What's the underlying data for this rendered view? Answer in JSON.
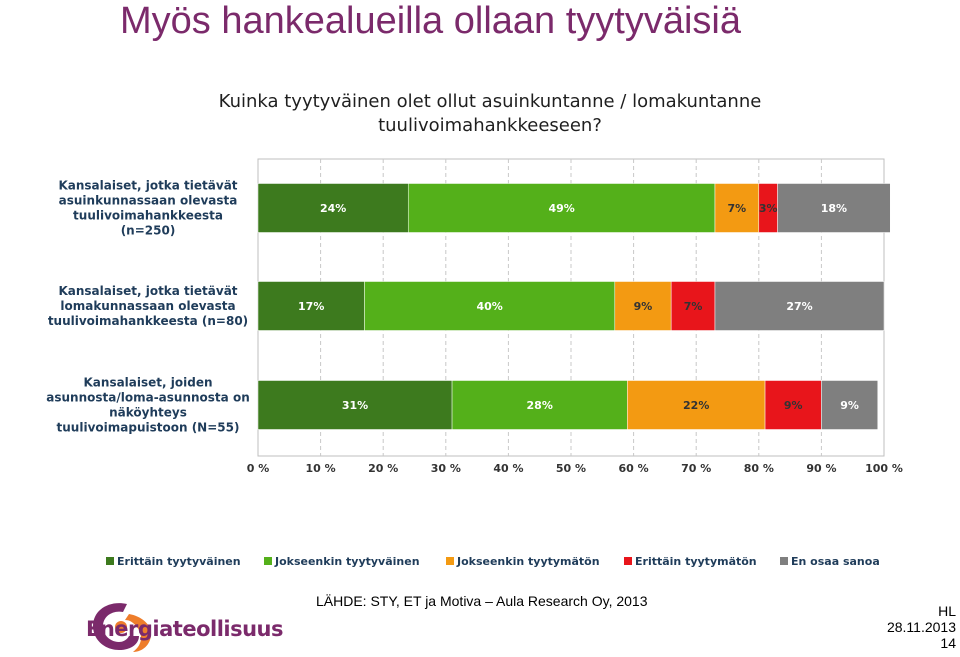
{
  "slide": {
    "title": "Myös hankealueilla ollaan tyytyväisiä",
    "source": "LÄHDE: STY, ET ja Motiva – Aula Research Oy, 2013",
    "initials": "HL",
    "date": "28.11.2013",
    "page": "14",
    "logo_text": "Energiateollisuus"
  },
  "colors": {
    "title": "#7b2a6b",
    "series": [
      "#3d7a1e",
      "#54b01a",
      "#f39a12",
      "#e8151b",
      "#7f7f7f"
    ]
  },
  "chart_data": {
    "type": "bar",
    "orientation": "horizontal",
    "stacked": true,
    "title": "Kuinka tyytyväinen olet ollut asuinkuntanne / lomakuntanne tuulivoimahankkeeseen?",
    "categories": [
      [
        "Kansalaiset, jotka tietävät",
        "asuinkunnassaan olevasta",
        "tuulivoimahankkeesta",
        "(n=250)"
      ],
      [
        "Kansalaiset, jotka tietävät",
        "lomakunnassaan olevasta",
        "tuulivoimahankkeesta (n=80)"
      ],
      [
        "Kansalaiset, joiden",
        "asunnosta/loma-asunnosta on",
        "näköyhteys",
        "tuulivoimapuistoon (N=55)"
      ]
    ],
    "series": [
      {
        "name": "Erittäin tyytyväinen",
        "values": [
          24,
          17,
          31
        ]
      },
      {
        "name": "Jokseenkin tyytyväinen",
        "values": [
          49,
          40,
          28
        ]
      },
      {
        "name": "Jokseenkin tyytymätön",
        "values": [
          7,
          9,
          22
        ]
      },
      {
        "name": "Erittäin tyytymätön",
        "values": [
          3,
          7,
          9
        ]
      },
      {
        "name": "En osaa sanoa",
        "values": [
          18,
          27,
          9
        ]
      }
    ],
    "data_labels": [
      [
        "24%",
        "49%",
        "7%",
        "3%",
        "18%"
      ],
      [
        "17%",
        "40%",
        "9%",
        "7%",
        "27%"
      ],
      [
        "31%",
        "28%",
        "22%",
        "9%",
        "9%"
      ]
    ],
    "xticks": [
      "0 %",
      "10 %",
      "20 %",
      "30 %",
      "40 %",
      "50 %",
      "60 %",
      "70 %",
      "80 %",
      "90 %",
      "100 %"
    ],
    "xlim": [
      0,
      100
    ],
    "grid": true,
    "legend_position": "bottom"
  }
}
